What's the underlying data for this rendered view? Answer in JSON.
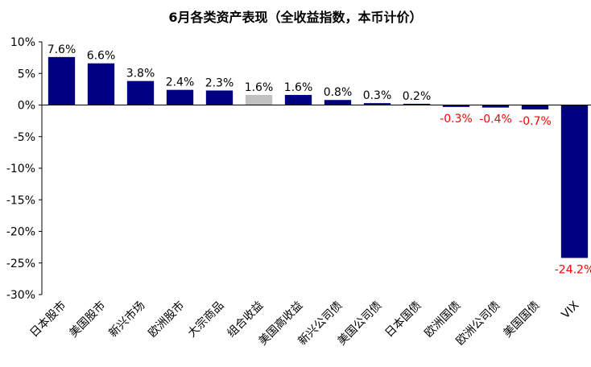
{
  "chart_data": {
    "type": "bar",
    "title": "6月各类资产表现（全收益指数，本币计价）",
    "xlabel": "",
    "ylabel": "",
    "ylim": [
      -30,
      10
    ],
    "yticks": [
      10,
      5,
      0,
      -5,
      -10,
      -15,
      -20,
      -25,
      -30
    ],
    "ytick_labels": [
      "10%",
      "5%",
      "0%",
      "-5%",
      "-10%",
      "-15%",
      "-20%",
      "-25%",
      "-30%"
    ],
    "grid": false,
    "legend": "none",
    "categories": [
      "日本股市",
      "美国股市",
      "新兴市场",
      "欧洲股市",
      "大宗商品",
      "组合收益",
      "美国高收益",
      "新兴公司债",
      "美国公司债",
      "日本国债",
      "欧洲国债",
      "欧洲公司债",
      "美国国债",
      "VIX"
    ],
    "values": [
      7.6,
      6.6,
      3.8,
      2.4,
      2.3,
      1.6,
      1.6,
      0.8,
      0.3,
      0.2,
      -0.3,
      -0.4,
      -0.7,
      -24.2
    ],
    "data_labels": [
      "7.6%",
      "6.6%",
      "3.8%",
      "2.4%",
      "2.3%",
      "1.6%",
      "1.6%",
      "0.8%",
      "0.3%",
      "0.2%",
      "-0.3%",
      "-0.4%",
      "-0.7%",
      "-24.2%"
    ],
    "highlight_category": "组合收益",
    "colors": {
      "bar": "#000080",
      "highlight_bar": "#c0c0c0",
      "positive_label": "#000000",
      "negative_label": "#ff0000",
      "axis": "#000000"
    }
  }
}
